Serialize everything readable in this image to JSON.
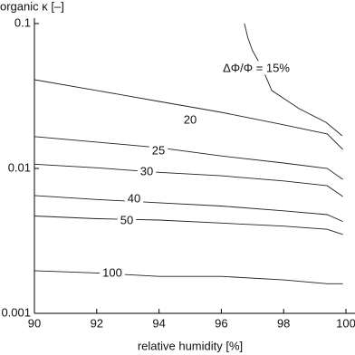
{
  "chart_data": {
    "type": "contour",
    "y_label": "organic κ [–]",
    "x_label": "relative humidity [%]",
    "xlim": [
      90,
      100
    ],
    "xticks": [
      90,
      92,
      94,
      96,
      98,
      100
    ],
    "ylim": [
      0.001,
      0.1
    ],
    "yticks": [
      0.001,
      0.01,
      0.1
    ],
    "log_y": true,
    "color": "#222222",
    "series": [
      {
        "name": "ΔΦ/Φ = 15%",
        "x": [
          96.74,
          96.85,
          97.0,
          97.3,
          97.62,
          98.49,
          99.36,
          99.88
        ],
        "values": [
          0.1,
          0.08,
          0.065,
          0.05,
          0.0345,
          0.0259,
          0.0208,
          0.0168
        ]
      },
      {
        "name": "20",
        "x": [
          90,
          92,
          94,
          96,
          98,
          99.4,
          99.9
        ],
        "values": [
          0.041,
          0.0345,
          0.029,
          0.0244,
          0.02,
          0.0173,
          0.0135
        ]
      },
      {
        "name": "25",
        "x": [
          90,
          92,
          94,
          96,
          98,
          99.4,
          99.9
        ],
        "values": [
          0.0166,
          0.0152,
          0.0139,
          0.0122,
          0.0109,
          0.01,
          0.0084
        ]
      },
      {
        "name": "30",
        "x": [
          90,
          92,
          94,
          96,
          98,
          99.4,
          99.9
        ],
        "values": [
          0.0107,
          0.0101,
          0.0094,
          0.0089,
          0.0082,
          0.0076,
          0.0064
        ]
      },
      {
        "name": "40",
        "x": [
          90,
          92,
          94,
          96,
          98,
          99.4,
          99.9
        ],
        "values": [
          0.0065,
          0.0061,
          0.0058,
          0.0055,
          0.0051,
          0.0048,
          0.0043
        ]
      },
      {
        "name": "50",
        "x": [
          90,
          92,
          94,
          96,
          98,
          99.4,
          99.9
        ],
        "values": [
          0.0047,
          0.0045,
          0.0044,
          0.0042,
          0.004,
          0.0038,
          0.0035
        ]
      },
      {
        "name": "100",
        "x": [
          90,
          92,
          94,
          96,
          98,
          99.4,
          99.9
        ],
        "values": [
          0.00197,
          0.0019,
          0.0018,
          0.0018,
          0.0017,
          0.0016,
          0.0016
        ]
      }
    ]
  }
}
